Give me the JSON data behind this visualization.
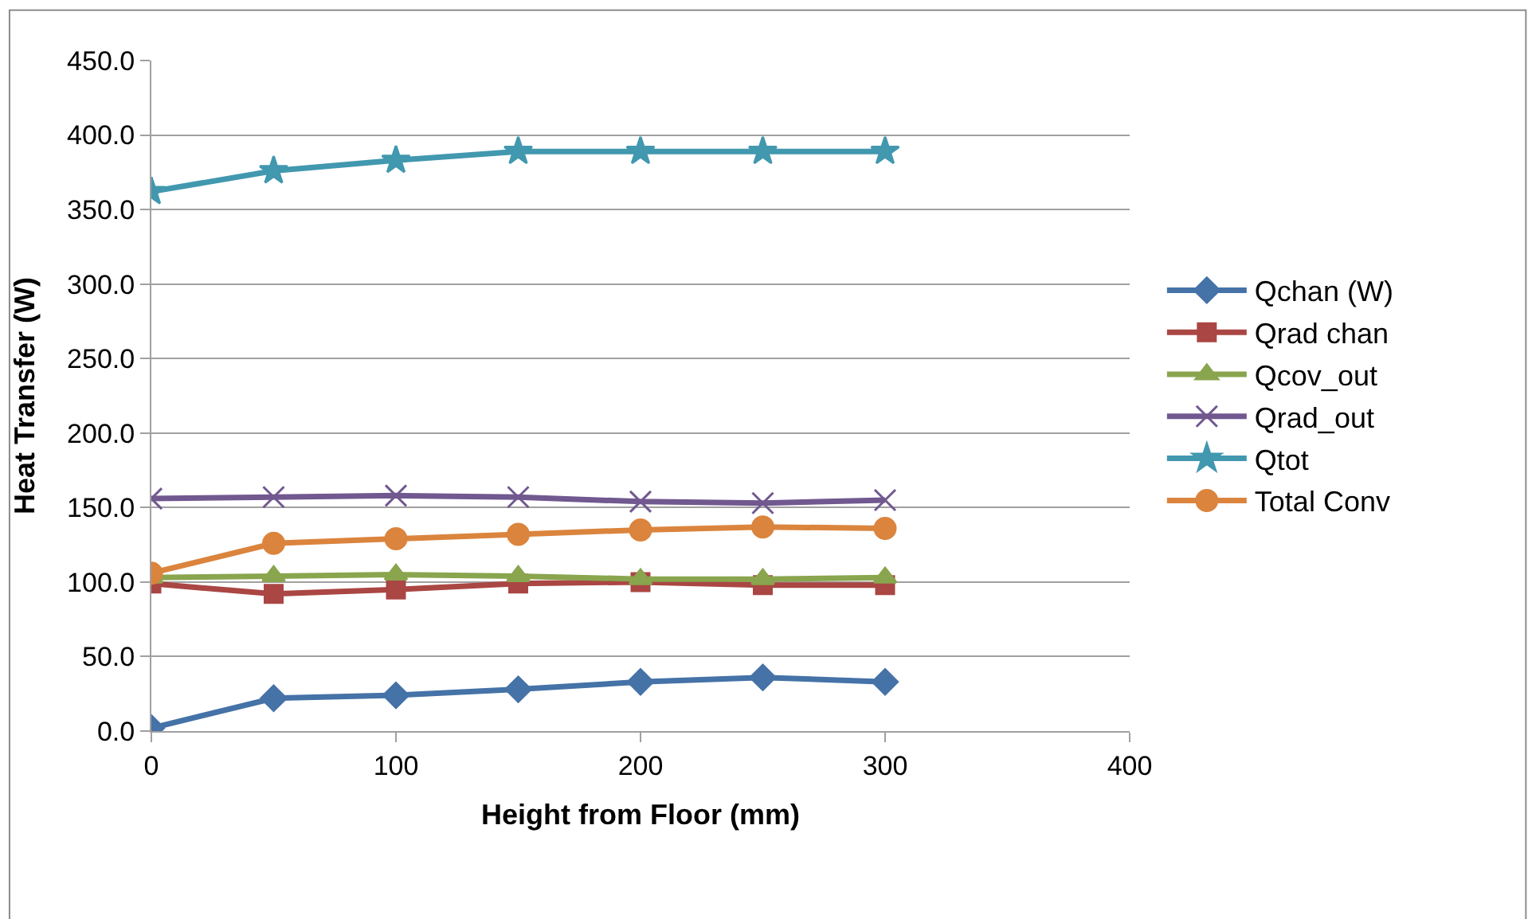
{
  "chart_data": {
    "type": "line",
    "xlabel": "Height from Floor (mm)",
    "ylabel": "Heat Transfer (W)",
    "x": [
      0,
      50,
      100,
      150,
      200,
      250,
      300
    ],
    "series": [
      {
        "name": "Qchan (W)",
        "color": "#4572a7",
        "marker": "diamond",
        "values": [
          2,
          22,
          24,
          28,
          33,
          36,
          33
        ]
      },
      {
        "name": "Qrad chan",
        "color": "#aa4643",
        "marker": "square",
        "values": [
          99,
          92,
          95,
          99,
          100,
          98,
          98
        ]
      },
      {
        "name": "Qcov_out",
        "color": "#89a54e",
        "marker": "triangle",
        "values": [
          103,
          104,
          105,
          104,
          102,
          102,
          103
        ]
      },
      {
        "name": "Qrad_out",
        "color": "#71588f",
        "marker": "cross",
        "values": [
          156,
          157,
          158,
          157,
          154,
          153,
          155
        ]
      },
      {
        "name": "Qtot",
        "color": "#4198af",
        "marker": "star",
        "values": [
          362,
          376,
          383,
          389,
          389,
          389,
          389
        ]
      },
      {
        "name": "Total Conv",
        "color": "#db843d",
        "marker": "circle",
        "values": [
          106,
          126,
          129,
          132,
          135,
          137,
          136
        ]
      }
    ],
    "xlim": [
      0,
      400
    ],
    "xticks": [
      0,
      100,
      200,
      300,
      400
    ],
    "ylim": [
      0,
      450
    ],
    "yticks": [
      {
        "value": 0,
        "label": "0.0"
      },
      {
        "value": 50,
        "label": "50.0"
      },
      {
        "value": 100,
        "label": "100.0"
      },
      {
        "value": 150,
        "label": "150.0"
      },
      {
        "value": 200,
        "label": "200.0"
      },
      {
        "value": 250,
        "label": "250.0"
      },
      {
        "value": 300,
        "label": "300.0"
      },
      {
        "value": 350,
        "label": "350.0"
      },
      {
        "value": 400,
        "label": "400.0"
      },
      {
        "value": 450,
        "label": "450.0"
      }
    ],
    "grid": "y",
    "legend": "right",
    "line_style": "solid"
  }
}
